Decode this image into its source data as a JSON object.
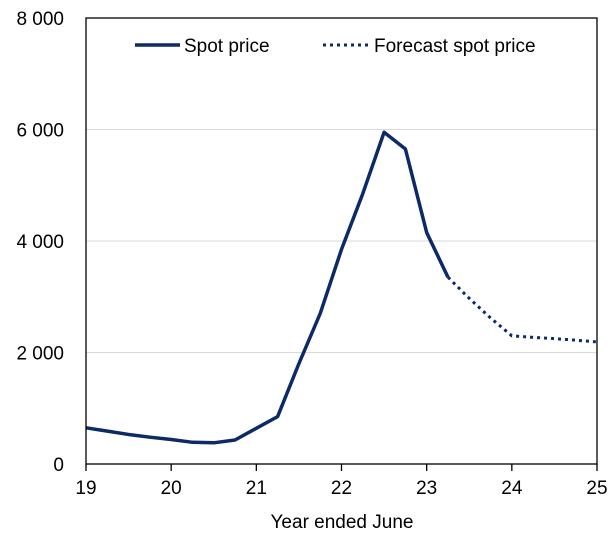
{
  "colors": {
    "series": "#0b2a66",
    "grid": "#d9d9d9",
    "axis": "#000000"
  },
  "chart_data": {
    "type": "line",
    "title": "",
    "xlabel": "Year ended June",
    "ylabel": "",
    "xlim": [
      19,
      25
    ],
    "ylim": [
      0,
      8000
    ],
    "x_ticks": [
      19,
      20,
      21,
      22,
      23,
      24,
      25
    ],
    "x_tick_labels": [
      "19",
      "20",
      "21",
      "22",
      "23",
      "24",
      "25"
    ],
    "y_ticks": [
      0,
      2000,
      4000,
      6000,
      8000
    ],
    "y_tick_labels": [
      "0",
      "2 000",
      "4 000",
      "6 000",
      "8 000"
    ],
    "grid": true,
    "legend_position": "top",
    "series": [
      {
        "name": "Spot price",
        "style": "solid",
        "x": [
          19.0,
          19.25,
          19.5,
          19.75,
          20.0,
          20.25,
          20.5,
          20.75,
          21.0,
          21.25,
          21.5,
          21.75,
          22.0,
          22.25,
          22.5,
          22.75,
          23.0,
          23.25
        ],
        "y": [
          650,
          590,
          530,
          480,
          440,
          390,
          380,
          430,
          640,
          850,
          1800,
          2700,
          3850,
          4850,
          5950,
          5650,
          4150,
          3350
        ]
      },
      {
        "name": "Forecast spot price",
        "style": "dotted",
        "x": [
          23.25,
          23.5,
          23.75,
          24.0,
          24.25,
          24.5,
          24.75,
          25.0
        ],
        "y": [
          3350,
          2970,
          2620,
          2300,
          2270,
          2250,
          2220,
          2190
        ]
      }
    ]
  }
}
